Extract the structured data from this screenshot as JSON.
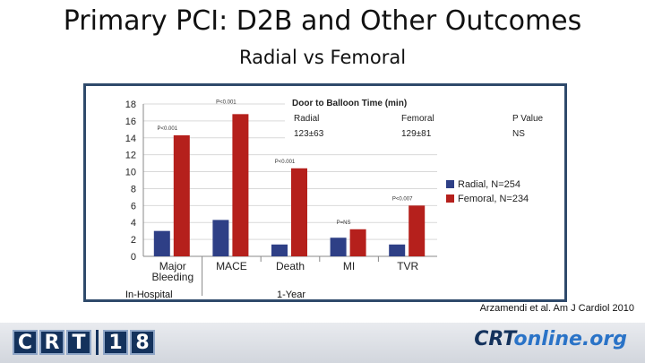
{
  "slide": {
    "title": "Primary PCI: D2B and Other Outcomes",
    "subtitle": "Radial vs Femoral",
    "citation": "Arzamendi et al. Am J Cardiol 2010"
  },
  "footer": {
    "logo_letters": [
      "C",
      "R",
      "T",
      "1",
      "8"
    ],
    "site_name_part1": "CRT",
    "site_name_part2": "online.org"
  },
  "chart_data": {
    "type": "bar",
    "categories": [
      "Major Bleeding",
      "MACE",
      "Death",
      "MI",
      "TVR"
    ],
    "series": [
      {
        "name": "Radial, N=254",
        "color": "#2e3f86",
        "values": [
          3.0,
          4.3,
          1.4,
          2.2,
          1.4
        ]
      },
      {
        "name": "Femoral, N=234",
        "color": "#b5201c",
        "values": [
          14.3,
          16.8,
          10.4,
          3.2,
          6.0
        ]
      }
    ],
    "ylim": [
      0,
      18
    ],
    "yticks": [
      0,
      2,
      4,
      6,
      8,
      10,
      12,
      14,
      16,
      18
    ],
    "p_values": [
      "P<0.001",
      "P<0.001",
      "P<0.001",
      "P=NS",
      "P<0.007"
    ],
    "group_labels": [
      "In-Hospital",
      "1-Year"
    ],
    "legend_position": "right",
    "inset_table": {
      "title": "Door to Balloon Time (min)",
      "headers": [
        "Radial",
        "Femoral",
        "P Value"
      ],
      "values": [
        "123±63",
        "129±81",
        "NS"
      ]
    }
  }
}
